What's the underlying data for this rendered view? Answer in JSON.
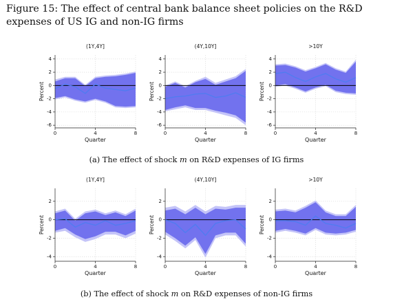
{
  "figure": {
    "title": "Figure 15: The effect of central bank balance sheet policies on the R&D expenses of US IG and non-IG firms",
    "caption_a": "(a) The effect of shock m on R&D expenses of IG firms",
    "caption_b": "(b) The effect of shock m on R&D expenses of non-IG firms"
  },
  "colors": {
    "outer_band": "#c4c4f8",
    "inner_band": "#7272ee",
    "line": "#4f7cf0",
    "zero_line": "#000000"
  },
  "chart_data": [
    {
      "type": "area",
      "group": "(a) IG firms",
      "title": "(1Y,4Y]",
      "xlabel": "Quarter",
      "ylabel": "Percent",
      "x": [
        0,
        1,
        2,
        3,
        4,
        5,
        6,
        7,
        8
      ],
      "xticks": [
        0,
        4,
        8
      ],
      "yticks": [
        -6,
        -4,
        -2,
        0,
        2,
        4
      ],
      "ylim": [
        -6.4,
        4.6
      ],
      "grid": true,
      "zero_line": true,
      "series": [
        {
          "name": "estimate",
          "values": [
            -0.5,
            0.2,
            -0.2,
            -1.2,
            0.2,
            -0.4,
            -0.6,
            -0.8,
            -0.4
          ]
        },
        {
          "name": "band_inner_upper",
          "values": [
            0.6,
            1.1,
            1.1,
            -0.1,
            1.1,
            1.3,
            1.4,
            1.6,
            1.9
          ]
        },
        {
          "name": "band_inner_lower",
          "values": [
            -1.9,
            -1.6,
            -2.1,
            -2.4,
            -2.0,
            -2.4,
            -3.1,
            -3.2,
            -3.1
          ]
        },
        {
          "name": "band_outer_upper",
          "values": [
            0.9,
            1.3,
            1.3,
            0.1,
            1.3,
            1.5,
            1.6,
            1.8,
            2.1
          ]
        },
        {
          "name": "band_outer_lower",
          "values": [
            -2.1,
            -1.8,
            -2.3,
            -2.6,
            -2.2,
            -2.6,
            -3.3,
            -3.4,
            -3.3
          ]
        }
      ]
    },
    {
      "type": "area",
      "group": "(a) IG firms",
      "title": "(4Y,10Y]",
      "xlabel": "Quarter",
      "ylabel": "Percent",
      "x": [
        0,
        1,
        2,
        3,
        4,
        5,
        6,
        7,
        8
      ],
      "xticks": [
        0,
        4,
        8
      ],
      "yticks": [
        -6,
        -4,
        -2,
        0,
        2,
        4
      ],
      "ylim": [
        -6.4,
        4.6
      ],
      "grid": true,
      "zero_line": true,
      "series": [
        {
          "name": "estimate",
          "values": [
            -2.0,
            -1.7,
            -1.6,
            -1.3,
            -1.2,
            -1.8,
            -1.6,
            -1.1,
            -1.8
          ]
        },
        {
          "name": "band_inner_upper",
          "values": [
            -0.2,
            0.4,
            -0.3,
            0.5,
            1.0,
            0.1,
            0.6,
            1.1,
            2.2
          ]
        },
        {
          "name": "band_inner_lower",
          "values": [
            -3.7,
            -3.3,
            -3.0,
            -3.4,
            -3.4,
            -3.8,
            -4.1,
            -4.5,
            -5.6
          ]
        },
        {
          "name": "band_outer_upper",
          "values": [
            0.0,
            0.6,
            -0.1,
            0.7,
            1.3,
            0.4,
            0.9,
            1.4,
            2.5
          ]
        },
        {
          "name": "band_outer_lower",
          "values": [
            -3.9,
            -3.6,
            -3.3,
            -3.7,
            -3.7,
            -4.1,
            -4.5,
            -4.9,
            -6.0
          ]
        }
      ]
    },
    {
      "type": "area",
      "group": "(a) IG firms",
      "title": ">10Y",
      "xlabel": "Quarter",
      "ylabel": "Percent",
      "x": [
        0,
        1,
        2,
        3,
        4,
        5,
        6,
        7,
        8
      ],
      "xticks": [
        0,
        4,
        8
      ],
      "yticks": [
        -6,
        -4,
        -2,
        0,
        2,
        4
      ],
      "ylim": [
        -6.4,
        4.6
      ],
      "grid": true,
      "zero_line": true,
      "series": [
        {
          "name": "estimate",
          "values": [
            1.8,
            2.0,
            1.2,
            0.6,
            1.3,
            1.8,
            1.0,
            0.5,
            1.2
          ]
        },
        {
          "name": "band_inner_upper",
          "values": [
            3.0,
            3.1,
            2.7,
            2.1,
            2.6,
            3.2,
            2.4,
            1.9,
            3.6
          ]
        },
        {
          "name": "band_inner_lower",
          "values": [
            0.0,
            0.2,
            -0.3,
            -0.9,
            -0.3,
            0.1,
            -0.8,
            -1.1,
            -1.2
          ]
        },
        {
          "name": "band_outer_upper",
          "values": [
            3.2,
            3.3,
            2.9,
            2.3,
            2.8,
            3.4,
            2.6,
            2.1,
            3.9
          ]
        },
        {
          "name": "band_outer_lower",
          "values": [
            -0.2,
            0.0,
            -0.5,
            -1.1,
            -0.5,
            -0.1,
            -1.0,
            -1.3,
            -1.4
          ]
        }
      ]
    },
    {
      "type": "area",
      "group": "(b) non-IG firms",
      "title": "(1Y,4Y]",
      "xlabel": "Quarter",
      "ylabel": "Percent",
      "x": [
        0,
        1,
        2,
        3,
        4,
        5,
        6,
        7,
        8
      ],
      "xticks": [
        0,
        4,
        8
      ],
      "yticks": [
        -4,
        -2,
        0,
        2
      ],
      "ylim": [
        -4.5,
        3.4
      ],
      "grid": true,
      "zero_line": true,
      "series": [
        {
          "name": "estimate",
          "values": [
            0.0,
            0.1,
            -0.8,
            -0.3,
            -0.6,
            -0.1,
            -0.6,
            -0.4,
            -0.1
          ]
        },
        {
          "name": "band_inner_upper",
          "values": [
            0.7,
            1.0,
            -0.1,
            0.7,
            0.9,
            0.5,
            0.8,
            0.4,
            1.0
          ]
        },
        {
          "name": "band_inner_lower",
          "values": [
            -1.2,
            -0.9,
            -1.6,
            -2.1,
            -1.8,
            -1.3,
            -1.3,
            -1.7,
            -1.2
          ]
        },
        {
          "name": "band_outer_upper",
          "values": [
            0.9,
            1.2,
            0.1,
            0.9,
            1.1,
            0.7,
            1.0,
            0.6,
            1.2
          ]
        },
        {
          "name": "band_outer_lower",
          "values": [
            -1.4,
            -1.2,
            -1.9,
            -2.4,
            -2.1,
            -1.6,
            -1.6,
            -2.0,
            -1.5
          ]
        }
      ]
    },
    {
      "type": "area",
      "group": "(b) non-IG firms",
      "title": "(4Y,10Y]",
      "xlabel": "Quarter",
      "ylabel": "Percent",
      "x": [
        0,
        1,
        2,
        3,
        4,
        5,
        6,
        7,
        8
      ],
      "xticks": [
        0,
        4,
        8
      ],
      "yticks": [
        -4,
        -2,
        0,
        2
      ],
      "ylim": [
        -4.5,
        3.4
      ],
      "grid": true,
      "zero_line": true,
      "series": [
        {
          "name": "estimate",
          "values": [
            0.0,
            -0.4,
            -1.4,
            -0.5,
            -1.7,
            -0.4,
            -0.1,
            0.0,
            -1.0
          ]
        },
        {
          "name": "band_inner_upper",
          "values": [
            1.0,
            1.2,
            0.6,
            1.3,
            0.6,
            1.2,
            1.1,
            1.3,
            1.3
          ]
        },
        {
          "name": "band_inner_lower",
          "values": [
            -1.3,
            -2.0,
            -2.8,
            -1.9,
            -3.7,
            -1.7,
            -1.4,
            -1.4,
            -2.6
          ]
        },
        {
          "name": "band_outer_upper",
          "values": [
            1.3,
            1.5,
            0.9,
            1.6,
            0.9,
            1.5,
            1.4,
            1.6,
            1.6
          ]
        },
        {
          "name": "band_outer_lower",
          "values": [
            -1.6,
            -2.3,
            -3.1,
            -2.2,
            -4.1,
            -2.0,
            -1.7,
            -1.7,
            -2.9
          ]
        }
      ]
    },
    {
      "type": "area",
      "group": "(b) non-IG firms",
      "title": ">10Y",
      "xlabel": "Quarter",
      "ylabel": "Percent",
      "x": [
        0,
        1,
        2,
        3,
        4,
        5,
        6,
        7,
        8
      ],
      "xticks": [
        0,
        4,
        8
      ],
      "yticks": [
        -4,
        -2,
        0,
        2
      ],
      "ylim": [
        -4.5,
        3.4
      ],
      "grid": true,
      "zero_line": true,
      "series": [
        {
          "name": "estimate",
          "values": [
            -0.1,
            -0.1,
            -0.2,
            -0.6,
            0.4,
            -0.4,
            -0.6,
            -0.9,
            -0.4
          ]
        },
        {
          "name": "band_inner_upper",
          "values": [
            0.9,
            1.0,
            0.8,
            1.3,
            1.9,
            0.8,
            0.4,
            0.4,
            1.4
          ]
        },
        {
          "name": "band_inner_lower",
          "values": [
            -1.2,
            -1.0,
            -1.2,
            -1.5,
            -0.9,
            -1.4,
            -1.5,
            -1.4,
            -1.1
          ]
        },
        {
          "name": "band_outer_upper",
          "values": [
            1.1,
            1.2,
            1.0,
            1.5,
            2.1,
            1.0,
            0.6,
            0.6,
            1.6
          ]
        },
        {
          "name": "band_outer_lower",
          "values": [
            -1.4,
            -1.2,
            -1.4,
            -1.7,
            -1.1,
            -1.6,
            -1.7,
            -1.6,
            -1.3
          ]
        }
      ]
    }
  ]
}
